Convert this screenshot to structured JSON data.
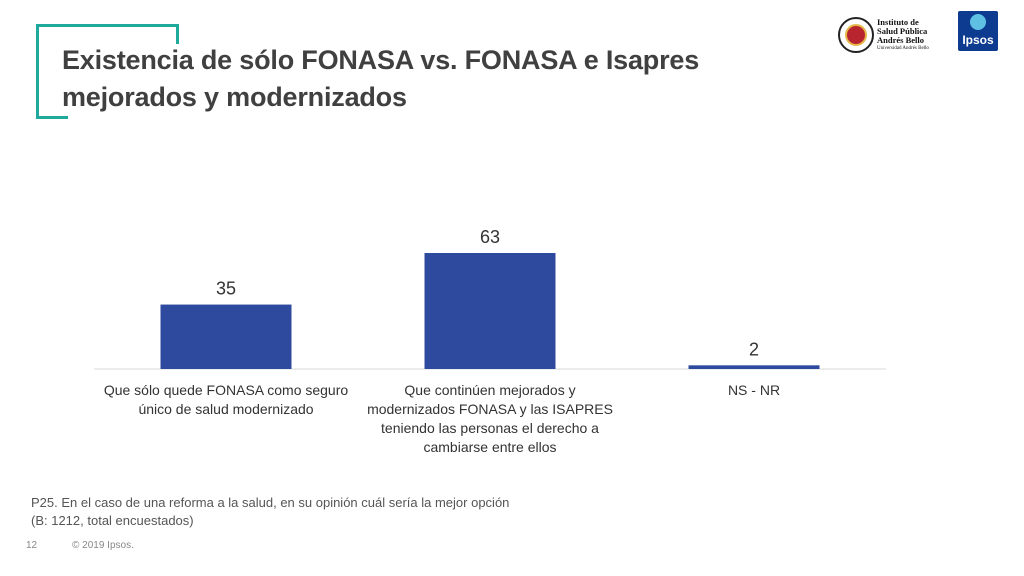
{
  "header": {
    "title_line1": "Existencia de sólo FONASA vs. FONASA e Isapres",
    "title_line2": "mejorados y modernizados",
    "logo_institute": [
      "Instituto de",
      "Salud Pública",
      "Andrés Bello",
      "Universidad Andrés Bello"
    ],
    "logo_ipsos": "Ipsos"
  },
  "chart_data": {
    "type": "bar",
    "categories": [
      "Que sólo quede FONASA como seguro único de salud modernizado",
      "Que continúen mejorados y modernizados FONASA y las ISAPRES teniendo las personas el derecho a cambiarse entre ellos",
      "NS - NR"
    ],
    "category_lines": [
      [
        "Que sólo quede FONASA como seguro",
        "único de salud modernizado"
      ],
      [
        "Que continúen mejorados y",
        "modernizados FONASA y las ISAPRES",
        "teniendo las personas el derecho a",
        "cambiarse entre ellos"
      ],
      [
        "NS - NR"
      ]
    ],
    "values": [
      35,
      63,
      2
    ],
    "data_labels": [
      "35",
      "63",
      "2"
    ],
    "title": "",
    "xlabel": "",
    "ylabel": "",
    "ylim": [
      0,
      63
    ],
    "bar_color": "#2e4a9e",
    "grid": false
  },
  "footer": {
    "question": "P25. En el caso de una reforma a la salud, en su opinión cuál sería la mejor opción",
    "base": "(B: 1212, total encuestados)",
    "page_number": "12",
    "copyright": "© 2019 Ipsos."
  },
  "colors": {
    "accent": "#1fa89c",
    "bar": "#2e4a9e",
    "title_text": "#404040"
  }
}
